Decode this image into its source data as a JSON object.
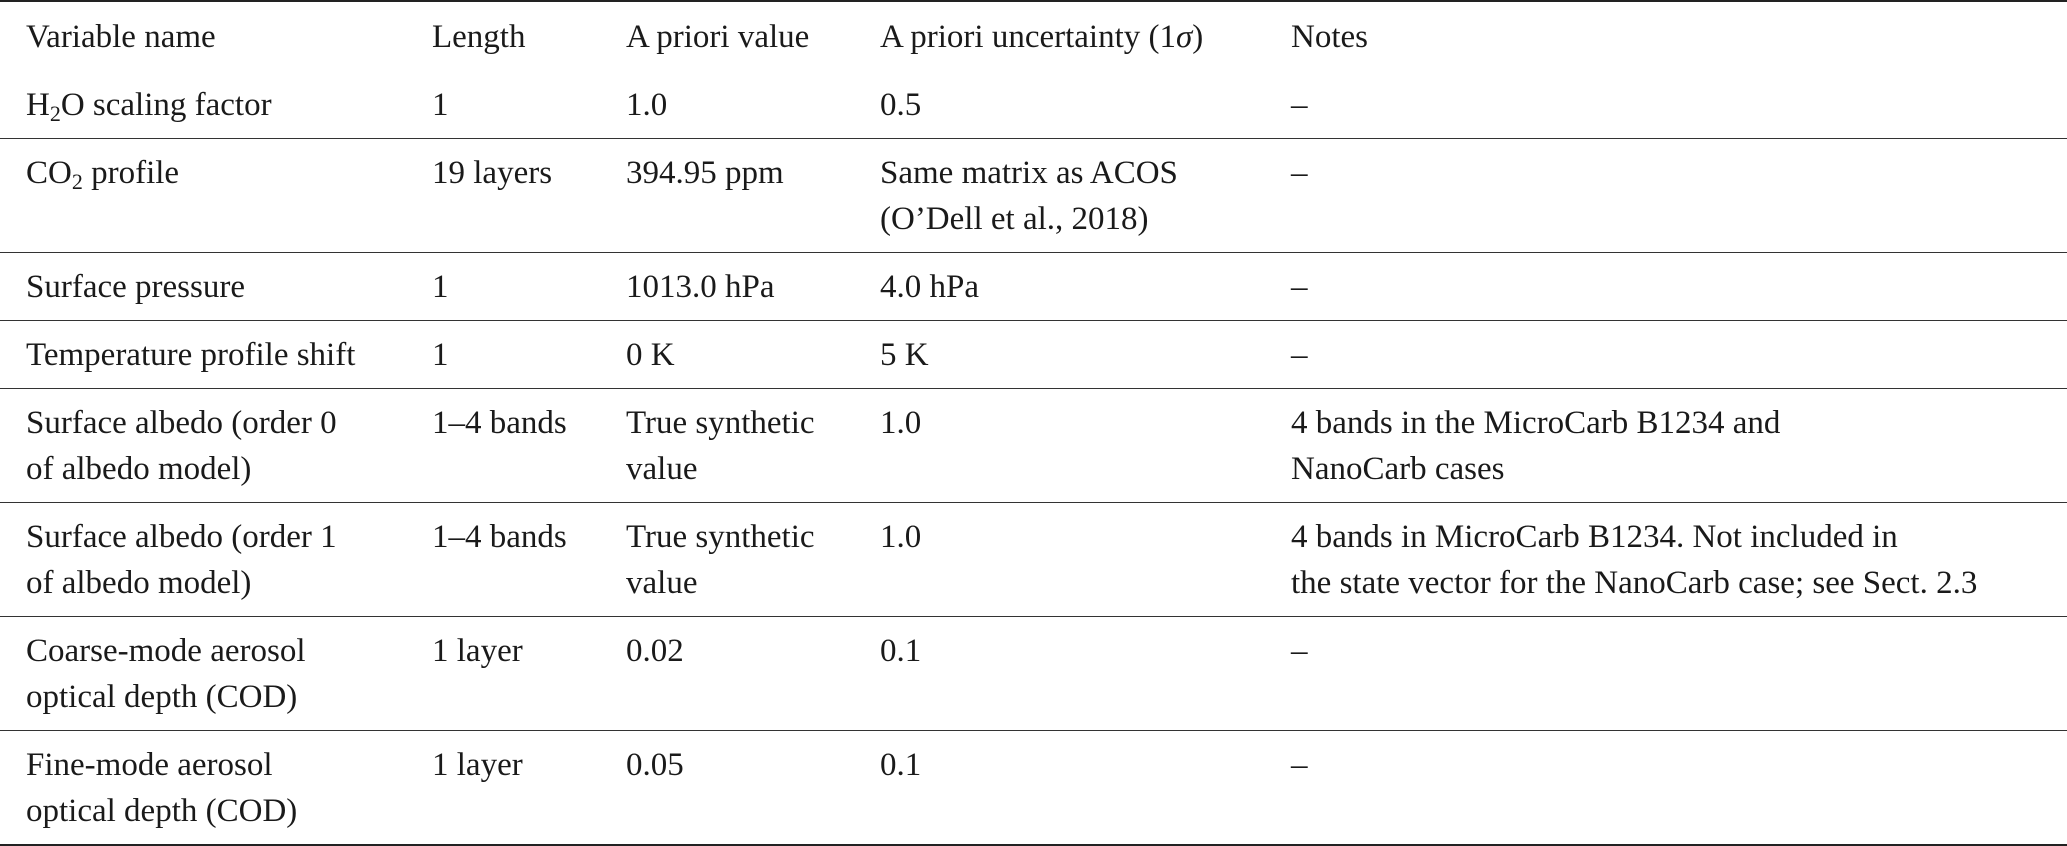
{
  "table": {
    "headers": [
      [
        [
          {
            "t": "Variable name"
          }
        ]
      ],
      [
        [
          {
            "t": "Length"
          }
        ]
      ],
      [
        [
          {
            "t": "A priori value"
          }
        ]
      ],
      [
        [
          {
            "t": "A priori uncertainty (1"
          },
          {
            "t": "σ",
            "it": true
          },
          {
            "t": ")"
          }
        ]
      ],
      [
        [
          {
            "t": "Notes"
          }
        ]
      ]
    ],
    "rows": [
      [
        [
          [
            {
              "t": "H"
            },
            {
              "t": "2",
              "sub": true
            },
            {
              "t": "O scaling factor"
            }
          ]
        ],
        [
          [
            {
              "t": "1"
            }
          ]
        ],
        [
          [
            {
              "t": "1.0"
            }
          ]
        ],
        [
          [
            {
              "t": "0.5"
            }
          ]
        ],
        [
          [
            {
              "t": "–"
            }
          ]
        ]
      ],
      [
        [
          [
            {
              "t": "CO"
            },
            {
              "t": "2",
              "sub": true
            },
            {
              "t": " profile"
            }
          ]
        ],
        [
          [
            {
              "t": "19 layers"
            }
          ]
        ],
        [
          [
            {
              "t": "394.95 ppm"
            }
          ]
        ],
        [
          [
            {
              "t": "Same matrix as ACOS"
            }
          ],
          [
            {
              "t": "(O’Dell et al., 2018)"
            }
          ]
        ],
        [
          [
            {
              "t": "–"
            }
          ]
        ]
      ],
      [
        [
          [
            {
              "t": "Surface pressure"
            }
          ]
        ],
        [
          [
            {
              "t": "1"
            }
          ]
        ],
        [
          [
            {
              "t": "1013.0 hPa"
            }
          ]
        ],
        [
          [
            {
              "t": "4.0 hPa"
            }
          ]
        ],
        [
          [
            {
              "t": "–"
            }
          ]
        ]
      ],
      [
        [
          [
            {
              "t": "Temperature profile shift"
            }
          ]
        ],
        [
          [
            {
              "t": "1"
            }
          ]
        ],
        [
          [
            {
              "t": "0 K"
            }
          ]
        ],
        [
          [
            {
              "t": "5 K"
            }
          ]
        ],
        [
          [
            {
              "t": "–"
            }
          ]
        ]
      ],
      [
        [
          [
            {
              "t": "Surface albedo (order 0"
            }
          ],
          [
            {
              "t": "of albedo model)"
            }
          ]
        ],
        [
          [
            {
              "t": "1–4 bands"
            }
          ]
        ],
        [
          [
            {
              "t": "True synthetic"
            }
          ],
          [
            {
              "t": "value"
            }
          ]
        ],
        [
          [
            {
              "t": "1.0"
            }
          ]
        ],
        [
          [
            {
              "t": "4 bands in the MicroCarb B1234 and"
            }
          ],
          [
            {
              "t": "NanoCarb cases"
            }
          ]
        ]
      ],
      [
        [
          [
            {
              "t": "Surface albedo (order 1"
            }
          ],
          [
            {
              "t": "of albedo model)"
            }
          ]
        ],
        [
          [
            {
              "t": "1–4 bands"
            }
          ]
        ],
        [
          [
            {
              "t": "True synthetic"
            }
          ],
          [
            {
              "t": "value"
            }
          ]
        ],
        [
          [
            {
              "t": "1.0"
            }
          ]
        ],
        [
          [
            {
              "t": "4 bands in MicroCarb B1234. Not included in"
            }
          ],
          [
            {
              "t": "the state vector for the NanoCarb case; see Sect. 2.3"
            }
          ]
        ]
      ],
      [
        [
          [
            {
              "t": "Coarse-mode aerosol"
            }
          ],
          [
            {
              "t": "optical depth (COD)"
            }
          ]
        ],
        [
          [
            {
              "t": "1 layer"
            }
          ]
        ],
        [
          [
            {
              "t": "0.02"
            }
          ]
        ],
        [
          [
            {
              "t": "0.1"
            }
          ]
        ],
        [
          [
            {
              "t": "–"
            }
          ]
        ]
      ],
      [
        [
          [
            {
              "t": "Fine-mode aerosol"
            }
          ],
          [
            {
              "t": "optical depth (COD)"
            }
          ]
        ],
        [
          [
            {
              "t": "1 layer"
            }
          ]
        ],
        [
          [
            {
              "t": "0.05"
            }
          ]
        ],
        [
          [
            {
              "t": "0.1"
            }
          ]
        ],
        [
          [
            {
              "t": "–"
            }
          ]
        ]
      ]
    ]
  }
}
